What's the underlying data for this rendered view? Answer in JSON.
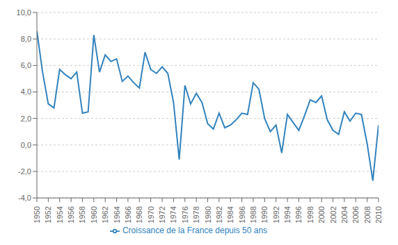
{
  "chart_data": {
    "type": "line",
    "x": [
      1950,
      1951,
      1952,
      1953,
      1954,
      1955,
      1956,
      1957,
      1958,
      1959,
      1960,
      1961,
      1962,
      1963,
      1964,
      1965,
      1966,
      1967,
      1968,
      1969,
      1970,
      1971,
      1972,
      1973,
      1974,
      1975,
      1976,
      1977,
      1978,
      1979,
      1980,
      1981,
      1982,
      1983,
      1984,
      1985,
      1986,
      1987,
      1988,
      1989,
      1990,
      1991,
      1992,
      1993,
      1994,
      1995,
      1996,
      1997,
      1998,
      1999,
      2000,
      2001,
      2002,
      2003,
      2004,
      2005,
      2006,
      2007,
      2008,
      2009,
      2010
    ],
    "series": [
      {
        "name": "Croissance de la France depuis 50 ans",
        "values": [
          8.6,
          5.5,
          3.1,
          2.8,
          5.7,
          5.3,
          5.0,
          5.5,
          2.4,
          2.5,
          8.3,
          5.5,
          6.8,
          6.3,
          6.5,
          4.8,
          5.2,
          4.7,
          4.3,
          7.0,
          5.7,
          5.4,
          5.9,
          5.4,
          3.2,
          -1.1,
          4.5,
          3.1,
          3.9,
          3.2,
          1.6,
          1.2,
          2.4,
          1.3,
          1.5,
          1.9,
          2.4,
          2.3,
          4.7,
          4.2,
          2.0,
          1.0,
          1.5,
          -0.6,
          2.3,
          1.7,
          1.1,
          2.2,
          3.4,
          3.2,
          3.7,
          1.9,
          1.1,
          0.8,
          2.5,
          1.8,
          2.4,
          2.3,
          0.1,
          -2.7,
          1.5
        ]
      }
    ],
    "xlim": [
      1950,
      2010
    ],
    "xticks": [
      1950,
      1952,
      1954,
      1956,
      1958,
      1960,
      1962,
      1964,
      1966,
      1968,
      1970,
      1972,
      1974,
      1976,
      1978,
      1980,
      1982,
      1984,
      1986,
      1988,
      1990,
      1992,
      1994,
      1996,
      1998,
      2000,
      2002,
      2004,
      2006,
      2008,
      2010
    ],
    "ylim": [
      -4.0,
      10.0
    ],
    "yticks": [
      {
        "value": 10.0,
        "label": "10,0"
      },
      {
        "value": 8.0,
        "label": "8,0"
      },
      {
        "value": 6.0,
        "label": "6,0"
      },
      {
        "value": 4.0,
        "label": "4,0"
      },
      {
        "value": 2.0,
        "label": "2,0"
      },
      {
        "value": 0.0,
        "label": "0,0"
      },
      {
        "value": -2.0,
        "label": "-2,0"
      },
      {
        "value": -4.0,
        "label": "-4,0"
      }
    ],
    "grid": true,
    "legend": "bottom"
  }
}
